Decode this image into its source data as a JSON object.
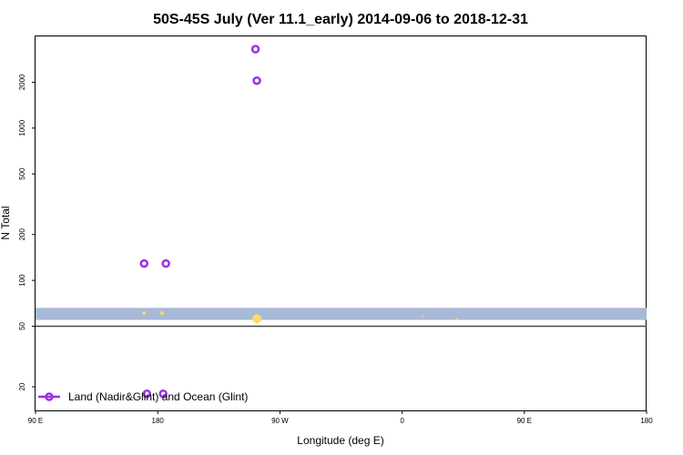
{
  "chart_data": {
    "type": "scatter",
    "title": "50S-45S July (Ver 11.1_early)   2014-09-06 to 2018-12-31",
    "xlabel": "Longitude (deg E)",
    "ylabel": "N Total",
    "y_scale": "log",
    "ylim": [
      14,
      4000
    ],
    "x_ticks": [
      "90 E",
      "180",
      "90 W",
      "0",
      "90 E",
      "180"
    ],
    "y_ticks": [
      20,
      50,
      100,
      200,
      500,
      1000,
      2000
    ],
    "grid": false,
    "legend": "bottom-left",
    "band": {
      "ymin": 55,
      "ymax": 66,
      "color": "#a7b9d6"
    },
    "reference_line": {
      "y": 50,
      "color": "#444444"
    },
    "series": [
      {
        "name": "Land (Nadir&Glint) and Ocean (Glint)",
        "color": "#9b30e6",
        "marker": "open-circle",
        "x": [
          170,
          -107,
          -108,
          172,
          -174,
          -176
        ],
        "y": [
          129,
          2050,
          3300,
          18,
          129,
          18
        ]
      }
    ],
    "background_points": {
      "color": "#ffd966",
      "x": [
        170,
        -107,
        -106,
        15,
        40,
        -177
      ],
      "y": [
        61,
        56,
        57,
        58,
        56,
        61
      ],
      "r": [
        2,
        5,
        3,
        1,
        1,
        2
      ]
    }
  }
}
